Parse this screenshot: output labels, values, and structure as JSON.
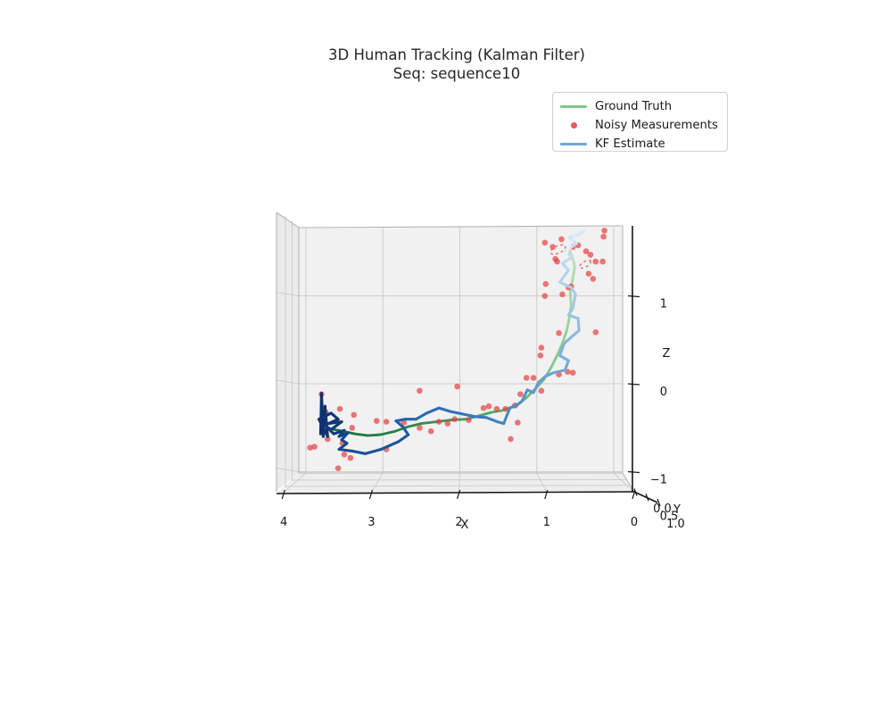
{
  "title": {
    "line1": "3D Human Tracking (Kalman Filter)",
    "line2": "Seq: sequence10"
  },
  "legend": {
    "items": [
      {
        "label": "Ground Truth",
        "type": "line",
        "color": "#7fc987"
      },
      {
        "label": "Noisy Measurements",
        "type": "dot",
        "color": "#e85c5c"
      },
      {
        "label": "KF Estimate",
        "type": "line",
        "color": "#6fa8d6"
      }
    ]
  },
  "axes": {
    "x_label": "X",
    "y_label": "Y",
    "z_label": "Z",
    "x_tick_values": [
      4,
      3,
      2,
      1,
      0
    ],
    "x_tick_labels": [
      "4",
      "3",
      "2",
      "1",
      "0"
    ],
    "y_tick_labels": [
      "0.0",
      "0.5",
      "1.0"
    ],
    "z_tick_values": [
      1,
      0,
      -1
    ],
    "z_tick_labels": [
      "1",
      "0",
      "−1"
    ]
  },
  "chart_data": {
    "type": "line",
    "projection": "3d",
    "title": "3D Human Tracking (Kalman Filter)",
    "subtitle": "Seq: sequence10",
    "x_range": [
      0,
      4
    ],
    "y_range": [
      0,
      1
    ],
    "z_range": [
      -1,
      2
    ],
    "grid": true,
    "legend_position": "upper right",
    "series": [
      {
        "name": "Ground Truth",
        "style": "gradient-line",
        "width": 2.8,
        "color_stops": [
          "#16703a",
          "#2a8449",
          "#4da263",
          "#79c07f",
          "#9cd49c",
          "#b7e0b3"
        ],
        "points": [
          [
            3.43,
            -0.49
          ],
          [
            3.32,
            -0.51
          ],
          [
            3.19,
            -0.54
          ],
          [
            3.04,
            -0.56
          ],
          [
            2.9,
            -0.55
          ],
          [
            2.73,
            -0.51
          ],
          [
            2.59,
            -0.46
          ],
          [
            2.43,
            -0.42
          ],
          [
            2.26,
            -0.4
          ],
          [
            2.1,
            -0.38
          ],
          [
            1.92,
            -0.37
          ],
          [
            1.77,
            -0.33
          ],
          [
            1.63,
            -0.29
          ],
          [
            1.51,
            -0.27
          ],
          [
            1.36,
            -0.22
          ],
          [
            1.23,
            -0.12
          ],
          [
            1.13,
            -0.02
          ],
          [
            1.03,
            0.09
          ],
          [
            0.95,
            0.23
          ],
          [
            0.88,
            0.37
          ],
          [
            0.82,
            0.51
          ],
          [
            0.77,
            0.66
          ],
          [
            0.74,
            0.81
          ],
          [
            0.72,
            0.95
          ],
          [
            0.73,
            1.11
          ],
          [
            0.7,
            1.27
          ],
          [
            0.68,
            1.39
          ],
          [
            0.69,
            1.46
          ],
          [
            0.74,
            1.59
          ]
        ]
      },
      {
        "name": "KF Estimate",
        "style": "gradient-line",
        "width": 3.1,
        "color_stops": [
          "#0e2f6e",
          "#123a7d",
          "#1b55a0",
          "#3b7ec0",
          "#74a9d6",
          "#b5d3ea",
          "#ecf1fa"
        ],
        "points": [
          [
            3.58,
            -0.54
          ],
          [
            3.57,
            -0.07
          ],
          [
            3.55,
            -0.57
          ],
          [
            3.53,
            -0.22
          ],
          [
            3.5,
            -0.57
          ],
          [
            3.6,
            -0.37
          ],
          [
            3.46,
            -0.3
          ],
          [
            3.38,
            -0.37
          ],
          [
            3.49,
            -0.42
          ],
          [
            3.34,
            -0.4
          ],
          [
            3.46,
            -0.49
          ],
          [
            3.52,
            -0.45
          ],
          [
            3.43,
            -0.54
          ],
          [
            3.31,
            -0.5
          ],
          [
            3.37,
            -0.57
          ],
          [
            3.27,
            -0.53
          ],
          [
            3.34,
            -0.61
          ],
          [
            3.28,
            -0.65
          ],
          [
            3.37,
            -0.72
          ],
          [
            3.22,
            -0.74
          ],
          [
            3.07,
            -0.77
          ],
          [
            2.89,
            -0.72
          ],
          [
            2.69,
            -0.63
          ],
          [
            2.58,
            -0.55
          ],
          [
            2.64,
            -0.46
          ],
          [
            2.72,
            -0.39
          ],
          [
            2.61,
            -0.37
          ],
          [
            2.49,
            -0.37
          ],
          [
            2.37,
            -0.3
          ],
          [
            2.23,
            -0.24
          ],
          [
            2.1,
            -0.28
          ],
          [
            1.96,
            -0.31
          ],
          [
            1.82,
            -0.34
          ],
          [
            1.69,
            -0.35
          ],
          [
            1.56,
            -0.4
          ],
          [
            1.49,
            -0.42
          ],
          [
            1.42,
            -0.24
          ],
          [
            1.33,
            -0.2
          ],
          [
            1.28,
            -0.16
          ],
          [
            1.22,
            -0.03
          ],
          [
            1.15,
            -0.06
          ],
          [
            1.09,
            0.06
          ],
          [
            1.01,
            0.13
          ],
          [
            0.92,
            0.17
          ],
          [
            0.79,
            0.2
          ],
          [
            0.75,
            0.31
          ],
          [
            0.85,
            0.37
          ],
          [
            0.8,
            0.51
          ],
          [
            0.71,
            0.59
          ],
          [
            0.63,
            0.66
          ],
          [
            0.64,
            0.8
          ],
          [
            0.75,
            0.84
          ],
          [
            0.7,
            0.92
          ],
          [
            0.67,
            1.08
          ],
          [
            0.72,
            1.16
          ],
          [
            0.85,
            1.22
          ],
          [
            0.75,
            1.36
          ],
          [
            0.82,
            1.44
          ],
          [
            0.71,
            1.51
          ],
          [
            0.78,
            1.58
          ],
          [
            0.66,
            1.67
          ],
          [
            0.74,
            1.74
          ],
          [
            0.62,
            1.78
          ],
          [
            0.57,
            1.82
          ],
          [
            0.67,
            1.77
          ],
          [
            0.72,
            1.68
          ],
          [
            0.76,
            1.59
          ],
          [
            0.79,
            1.52
          ]
        ]
      },
      {
        "name": "Noisy Measurements",
        "style": "scatter",
        "color": "#e53e3e",
        "opacity": 0.7,
        "radius": 3.3,
        "points": [
          [
            1.02,
            1.68
          ],
          [
            0.93,
            1.63
          ],
          [
            0.83,
            1.72
          ],
          [
            0.9,
            1.49
          ],
          [
            0.88,
            1.46
          ],
          [
            0.7,
            1.63
          ],
          [
            0.64,
            1.65
          ],
          [
            0.55,
            1.58
          ],
          [
            0.5,
            1.54
          ],
          [
            0.35,
            1.75
          ],
          [
            0.44,
            1.46
          ],
          [
            0.36,
            1.46
          ],
          [
            0.52,
            1.32
          ],
          [
            0.47,
            1.26
          ],
          [
            1.01,
            1.2
          ],
          [
            0.75,
            1.16
          ],
          [
            0.72,
            1.17
          ],
          [
            0.82,
            1.08
          ],
          [
            1.02,
            1.06
          ],
          [
            0.34,
            1.82
          ],
          [
            0.86,
            0.63
          ],
          [
            0.44,
            0.64
          ],
          [
            1.06,
            0.46
          ],
          [
            1.07,
            0.37
          ],
          [
            0.86,
            0.15
          ],
          [
            0.76,
            0.18
          ],
          [
            0.7,
            0.17
          ],
          [
            1.23,
            0.11
          ],
          [
            1.15,
            0.11
          ],
          [
            1.3,
            -0.08
          ],
          [
            1.06,
            -0.04
          ],
          [
            2.02,
            0.01
          ],
          [
            2.45,
            -0.04
          ],
          [
            1.72,
            -0.24
          ],
          [
            1.66,
            -0.22
          ],
          [
            1.57,
            -0.25
          ],
          [
            1.47,
            -0.25
          ],
          [
            1.36,
            -0.21
          ],
          [
            1.33,
            -0.41
          ],
          [
            1.41,
            -0.6
          ],
          [
            1.89,
            -0.38
          ],
          [
            2.05,
            -0.37
          ],
          [
            2.23,
            -0.4
          ],
          [
            2.13,
            -0.42
          ],
          [
            2.32,
            -0.51
          ],
          [
            3.57,
            -0.08
          ],
          [
            3.52,
            -0.29
          ],
          [
            3.36,
            -0.25
          ],
          [
            3.2,
            -0.32
          ],
          [
            2.94,
            -0.39
          ],
          [
            2.83,
            -0.4
          ],
          [
            2.63,
            -0.41
          ],
          [
            2.45,
            -0.47
          ],
          [
            3.22,
            -0.47
          ],
          [
            3.33,
            -0.65
          ],
          [
            3.5,
            -0.6
          ],
          [
            3.65,
            -0.69
          ],
          [
            3.7,
            -0.7
          ],
          [
            3.31,
            -0.78
          ],
          [
            3.24,
            -0.82
          ],
          [
            2.83,
            -0.72
          ],
          [
            3.38,
            -0.94
          ]
        ]
      }
    ],
    "uncertainty_ellipses": [
      {
        "cx": 0.87,
        "cz": 1.6,
        "rx": 9,
        "ry": 4,
        "rot": -25,
        "color": "#e04b4b"
      },
      {
        "cx": 0.56,
        "cz": 1.43,
        "rx": 7,
        "ry": 3,
        "rot": -30,
        "color": "#e04b4b"
      }
    ],
    "colors": {
      "pane_back": "#f1f1f1",
      "pane_left": "#ebebeb",
      "pane_floor": "#eeeeee",
      "grid": "#cdcdcd",
      "pane_edge": "#b5b5b5",
      "spine": "#141414"
    }
  }
}
